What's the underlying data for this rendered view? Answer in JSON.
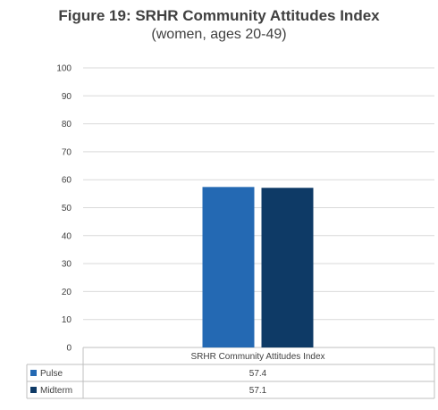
{
  "title": "Figure 19: SRHR Community Attitudes Index",
  "subtitle": "(women, ages 20-49)",
  "chart_data": {
    "type": "bar",
    "categories": [
      "SRHR Community Attitudes Index"
    ],
    "series": [
      {
        "name": "Pulse",
        "values": [
          57.4
        ],
        "color": "#2469B3",
        "value_label": "57.4"
      },
      {
        "name": "Midterm",
        "values": [
          57.1
        ],
        "color": "#0E3A66",
        "value_label": "57.1"
      }
    ],
    "ylim": [
      0,
      100
    ],
    "yticks": [
      "0",
      "10",
      "20",
      "30",
      "40",
      "50",
      "60",
      "70",
      "80",
      "90",
      "100"
    ],
    "grid": true,
    "legend": "data-table-left"
  }
}
